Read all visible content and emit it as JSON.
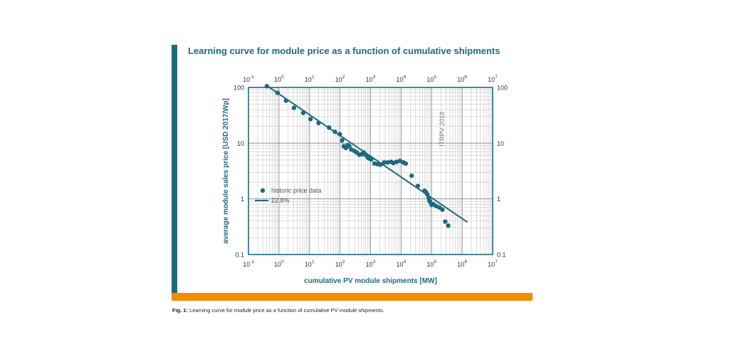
{
  "figure": {
    "title": "Learning curve for module price as a function of cumulative shipments",
    "caption_prefix": "Fig. 1:",
    "caption_text": " Learning curve for module price as a function of cumulative PV module shipments.",
    "colors": {
      "accent": "#1e6a7c",
      "orange": "#f28c00",
      "grid": "#bdbdbd"
    }
  },
  "chart_data": {
    "type": "scatter",
    "x_scale": "log",
    "y_scale": "log",
    "xlim": [
      0.1,
      10000000
    ],
    "ylim": [
      0.1,
      100
    ],
    "xlabel": "cumulative PV module shipments [MW]",
    "ylabel": "average module sales price [USD 2017/Wp]",
    "x_ticks": [
      {
        "value": 0.1,
        "base": "10",
        "exp": "-1"
      },
      {
        "value": 1,
        "base": "10",
        "exp": "0"
      },
      {
        "value": 10,
        "base": "10",
        "exp": "1"
      },
      {
        "value": 100,
        "base": "10",
        "exp": "2"
      },
      {
        "value": 1000,
        "base": "10",
        "exp": "3"
      },
      {
        "value": 10000,
        "base": "10",
        "exp": "4"
      },
      {
        "value": 100000,
        "base": "10",
        "exp": "5"
      },
      {
        "value": 1000000,
        "base": "10",
        "exp": "6"
      },
      {
        "value": 10000000,
        "base": "10",
        "exp": "7"
      }
    ],
    "y_ticks": [
      {
        "value": 0.1,
        "label": "0.1"
      },
      {
        "value": 1,
        "label": "1"
      },
      {
        "value": 10,
        "label": "10"
      },
      {
        "value": 100,
        "label": "100"
      }
    ],
    "annotation": "ITRPV 2018",
    "grid": true,
    "legend_position": "left",
    "series": [
      {
        "name": "historic price data",
        "kind": "scatter",
        "x": [
          0.4,
          0.9,
          1.7,
          3.1,
          6.2,
          10.8,
          19.8,
          43.7,
          68,
          98,
          117,
          133,
          156,
          180,
          200,
          233,
          298,
          356,
          425,
          512,
          600,
          700,
          815,
          904,
          1055,
          1343,
          1715,
          2105,
          2778,
          3622,
          4710,
          5600,
          7031,
          9144,
          11891,
          14200,
          22200,
          35300,
          59000,
          66000,
          73000,
          80000,
          85000,
          90000,
          100000,
          115000,
          140000,
          180000,
          225000,
          280000,
          350000
        ],
        "y": [
          105,
          80,
          58,
          43,
          35,
          27,
          23,
          19,
          16,
          14.5,
          11.2,
          8.8,
          8.2,
          9.2,
          8.9,
          7.7,
          7.2,
          6.8,
          6.2,
          6.3,
          6.8,
          6.1,
          5.5,
          5.3,
          5.1,
          4.3,
          4.2,
          4.1,
          4.5,
          4.5,
          4.6,
          4.4,
          4.6,
          4.8,
          4.5,
          4.3,
          2.6,
          1.7,
          1.4,
          1.3,
          1.2,
          1.05,
          0.92,
          0.88,
          0.78,
          0.8,
          0.74,
          0.7,
          0.64,
          0.39,
          0.33
        ]
      },
      {
        "name": "22.8%",
        "kind": "line",
        "x": [
          0.45,
          1500000
        ],
        "y": [
          103,
          0.38
        ]
      }
    ]
  }
}
